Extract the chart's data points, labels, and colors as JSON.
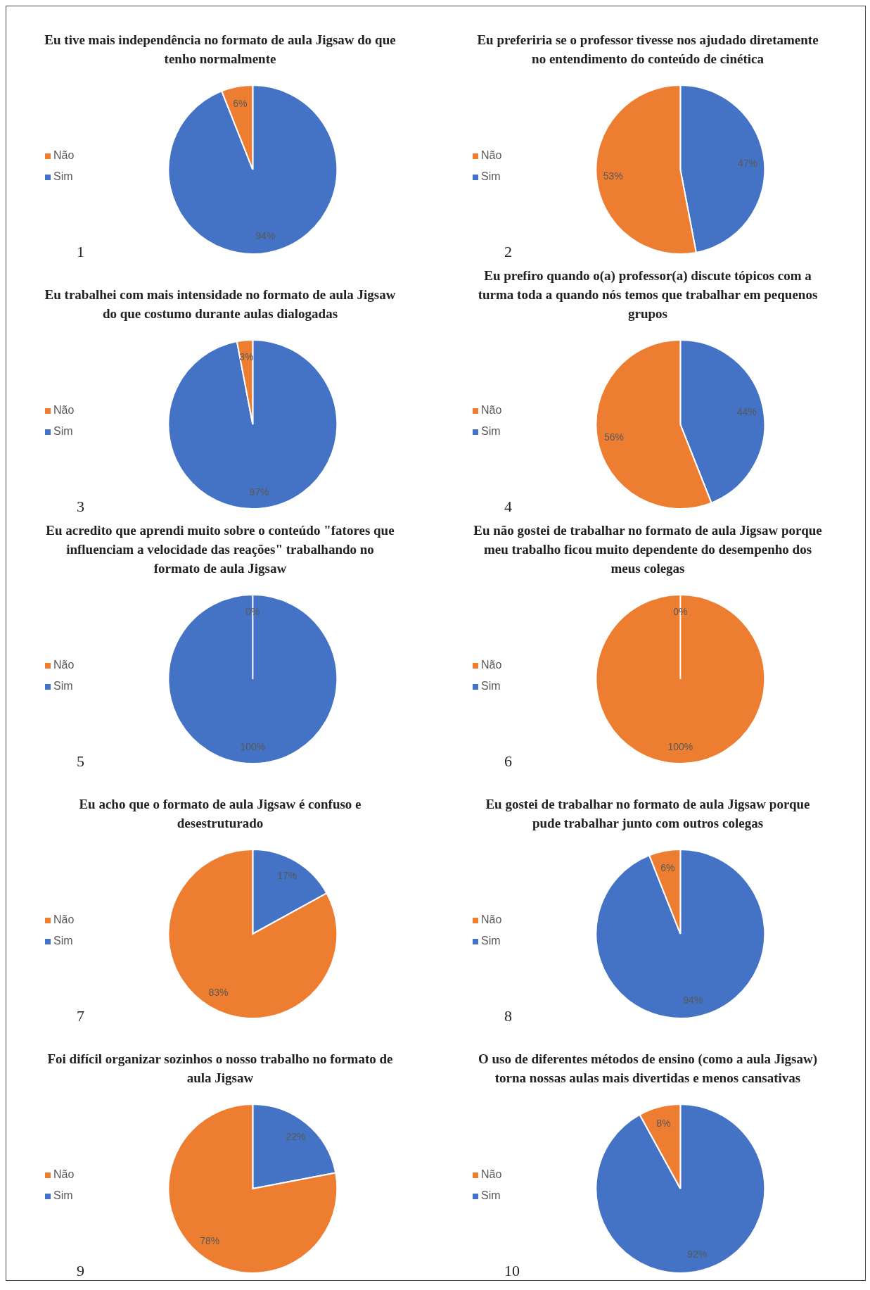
{
  "chart_data": [
    {
      "type": "pie",
      "title": "Eu tive mais independência no formato de aula Jigsaw do que tenho normalmente",
      "categories": [
        "Sim",
        "Não"
      ],
      "values": [
        94,
        6
      ],
      "value_labels": [
        "94%",
        "6%"
      ],
      "colors": [
        "#4472c4",
        "#ed7d31"
      ],
      "legend": "left",
      "annotations": [
        "1"
      ]
    },
    {
      "type": "pie",
      "title": "Eu preferiria se o professor tivesse nos ajudado diretamente no entendimento do conteúdo de cinética",
      "categories": [
        "Sim",
        "Não"
      ],
      "values": [
        47,
        53
      ],
      "value_labels": [
        "47%",
        "53%"
      ],
      "colors": [
        "#4472c4",
        "#ed7d31"
      ],
      "legend": "left",
      "annotations": [
        "2"
      ]
    },
    {
      "type": "pie",
      "title": "Eu trabalhei com mais intensidade no formato de aula Jigsaw do que costumo durante aulas dialogadas",
      "categories": [
        "Sim",
        "Não"
      ],
      "values": [
        97,
        3
      ],
      "value_labels": [
        "97%",
        "3%"
      ],
      "colors": [
        "#4472c4",
        "#ed7d31"
      ],
      "legend": "left",
      "annotations": [
        "3"
      ]
    },
    {
      "type": "pie",
      "title": "Eu prefiro quando o(a) professor(a) discute tópicos com a turma toda a quando nós temos que trabalhar em pequenos grupos",
      "categories": [
        "Sim",
        "Não"
      ],
      "values": [
        44,
        56
      ],
      "value_labels": [
        "44%",
        "56%"
      ],
      "colors": [
        "#4472c4",
        "#ed7d31"
      ],
      "legend": "left",
      "annotations": [
        "4"
      ]
    },
    {
      "type": "pie",
      "title": "Eu acredito que aprendi muito sobre o conteúdo \"fatores que influenciam a velocidade das reações\" trabalhando no formato de aula Jigsaw",
      "categories": [
        "Sim",
        "Não"
      ],
      "values": [
        100,
        0
      ],
      "value_labels": [
        "100%",
        "0%"
      ],
      "colors": [
        "#4472c4",
        "#ed7d31"
      ],
      "legend": "left",
      "annotations": [
        "5"
      ]
    },
    {
      "type": "pie",
      "title": "Eu não gostei de trabalhar no formato de aula Jigsaw porque meu trabalho ficou muito dependente do desempenho dos meus colegas",
      "categories": [
        "Sim",
        "Não"
      ],
      "values": [
        0,
        100
      ],
      "value_labels": [
        "0%",
        "100%"
      ],
      "colors": [
        "#4472c4",
        "#ed7d31"
      ],
      "legend": "left",
      "annotations": [
        "6"
      ]
    },
    {
      "type": "pie",
      "title": "Eu acho que o formato de aula Jigsaw é confuso e desestruturado",
      "categories": [
        "Sim",
        "Não"
      ],
      "values": [
        17,
        83
      ],
      "value_labels": [
        "17%",
        "83%"
      ],
      "colors": [
        "#4472c4",
        "#ed7d31"
      ],
      "legend": "left",
      "annotations": [
        "7"
      ]
    },
    {
      "type": "pie",
      "title": "Eu gostei de trabalhar no formato de aula Jigsaw porque pude trabalhar junto com outros colegas",
      "categories": [
        "Sim",
        "Não"
      ],
      "values": [
        94,
        6
      ],
      "value_labels": [
        "94%",
        "6%"
      ],
      "colors": [
        "#4472c4",
        "#ed7d31"
      ],
      "legend": "left",
      "annotations": [
        "8"
      ]
    },
    {
      "type": "pie",
      "title": "Foi difícil organizar sozinhos o nosso trabalho no formato de aula Jigsaw",
      "categories": [
        "Sim",
        "Não"
      ],
      "values": [
        22,
        78
      ],
      "value_labels": [
        "22%",
        "78%"
      ],
      "colors": [
        "#4472c4",
        "#ed7d31"
      ],
      "legend": "left",
      "annotations": [
        "9"
      ]
    },
    {
      "type": "pie",
      "title": "O uso de diferentes métodos de ensino (como a aula Jigsaw) torna nossas aulas mais divertidas e menos cansativas",
      "categories": [
        "Sim",
        "Não"
      ],
      "values": [
        92,
        8
      ],
      "value_labels": [
        "92%",
        "8%"
      ],
      "colors": [
        "#4472c4",
        "#ed7d31"
      ],
      "legend": "left",
      "annotations": [
        "10"
      ]
    }
  ]
}
